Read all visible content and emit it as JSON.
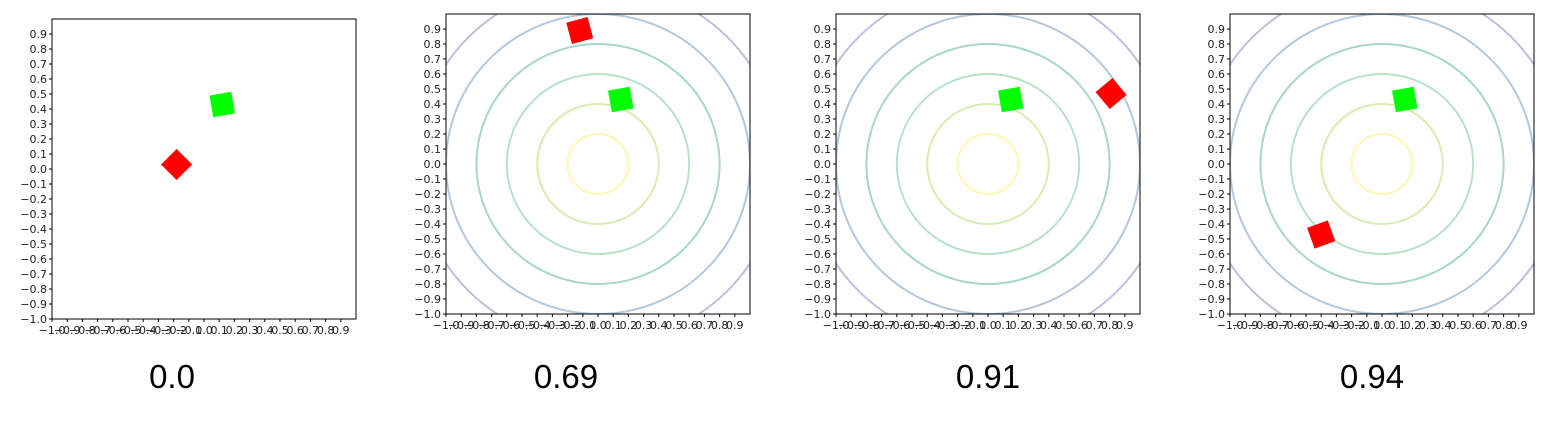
{
  "colors": {
    "target": "#00ff00",
    "agent": "#ff0000",
    "contour_levels": [
      "#fff6b0",
      "#d9edb0",
      "#b8e2c8",
      "#a6d6cc",
      "#b3c7dd",
      "#c1bedb"
    ]
  },
  "panels": [
    {
      "caption": "0.0"
    },
    {
      "caption": "0.69"
    },
    {
      "caption": "0.91"
    },
    {
      "caption": "0.94"
    }
  ],
  "chart_data": [
    {
      "type": "scatter",
      "title": "",
      "xlabel": "",
      "ylabel": "",
      "xlim": [
        -1.0,
        1.0
      ],
      "ylim": [
        -1.0,
        1.0
      ],
      "xticks": [
        "−1.0",
        "−0.9",
        "−0.8",
        "−0.7",
        "−0.6",
        "−0.5",
        "−0.4",
        "−0.3",
        "−0.2",
        "−0.1",
        "0.0",
        "0.1",
        "0.2",
        "0.3",
        "0.4",
        "0.5",
        "0.6",
        "0.7",
        "0.8",
        "0.9"
      ],
      "yticks": [
        "−1.0",
        "−0.9",
        "−0.8",
        "−0.7",
        "−0.6",
        "−0.5",
        "−0.4",
        "−0.3",
        "−0.2",
        "−0.1",
        "0.0",
        "0.1",
        "0.2",
        "0.3",
        "0.4",
        "0.5",
        "0.6",
        "0.7",
        "0.8",
        "0.9"
      ],
      "contours": false,
      "markers": [
        {
          "role": "target",
          "x": 0.12,
          "y": 0.43,
          "rotation_deg": 10,
          "color": "#00ff00"
        },
        {
          "role": "agent",
          "x": -0.18,
          "y": 0.03,
          "rotation_deg": 45,
          "color": "#ff0000"
        }
      ]
    },
    {
      "type": "scatter",
      "title": "",
      "xlabel": "",
      "ylabel": "",
      "xlim": [
        -1.0,
        1.0
      ],
      "ylim": [
        -1.0,
        1.0
      ],
      "xticks": [
        "−1.0",
        "−0.9",
        "−0.8",
        "−0.7",
        "−0.6",
        "−0.5",
        "−0.4",
        "−0.3",
        "−0.2",
        "−0.1",
        "0.0",
        "0.1",
        "0.2",
        "0.3",
        "0.4",
        "0.5",
        "0.6",
        "0.7",
        "0.8",
        "0.9"
      ],
      "yticks": [
        "−1.0",
        "−0.9",
        "−0.8",
        "−0.7",
        "−0.6",
        "−0.5",
        "−0.4",
        "−0.3",
        "−0.2",
        "−0.1",
        "0.0",
        "0.1",
        "0.2",
        "0.3",
        "0.4",
        "0.5",
        "0.6",
        "0.7",
        "0.8",
        "0.9"
      ],
      "contours": true,
      "markers": [
        {
          "role": "target",
          "x": 0.15,
          "y": 0.43,
          "rotation_deg": 10,
          "color": "#00ff00"
        },
        {
          "role": "agent",
          "x": -0.12,
          "y": 0.89,
          "rotation_deg": 15,
          "color": "#ff0000"
        }
      ]
    },
    {
      "type": "scatter",
      "title": "",
      "xlabel": "",
      "ylabel": "",
      "xlim": [
        -1.0,
        1.0
      ],
      "ylim": [
        -1.0,
        1.0
      ],
      "xticks": [
        "−1.0",
        "−0.9",
        "−0.8",
        "−0.7",
        "−0.6",
        "−0.5",
        "−0.4",
        "−0.3",
        "−0.2",
        "−0.1",
        "0.0",
        "0.1",
        "0.2",
        "0.3",
        "0.4",
        "0.5",
        "0.6",
        "0.7",
        "0.8",
        "0.9"
      ],
      "yticks": [
        "−1.0",
        "−0.9",
        "−0.8",
        "−0.7",
        "−0.6",
        "−0.5",
        "−0.4",
        "−0.3",
        "−0.2",
        "−0.1",
        "0.0",
        "0.1",
        "0.2",
        "0.3",
        "0.4",
        "0.5",
        "0.6",
        "0.7",
        "0.8",
        "0.9"
      ],
      "contours": true,
      "markers": [
        {
          "role": "target",
          "x": 0.15,
          "y": 0.43,
          "rotation_deg": 10,
          "color": "#00ff00"
        },
        {
          "role": "agent",
          "x": 0.81,
          "y": 0.47,
          "rotation_deg": 40,
          "color": "#ff0000"
        }
      ]
    },
    {
      "type": "scatter",
      "title": "",
      "xlabel": "",
      "ylabel": "",
      "xlim": [
        -1.0,
        1.0
      ],
      "ylim": [
        -1.0,
        1.0
      ],
      "xticks": [
        "−1.0",
        "−0.9",
        "−0.8",
        "−0.7",
        "−0.6",
        "−0.5",
        "−0.4",
        "−0.3",
        "−0.2",
        "−0.1",
        "0.0",
        "0.1",
        "0.2",
        "0.3",
        "0.4",
        "0.5",
        "0.6",
        "0.7",
        "0.8",
        "0.9"
      ],
      "yticks": [
        "−1.0",
        "−0.9",
        "−0.8",
        "−0.7",
        "−0.6",
        "−0.5",
        "−0.4",
        "−0.3",
        "−0.2",
        "−0.1",
        "0.0",
        "0.1",
        "0.2",
        "0.3",
        "0.4",
        "0.5",
        "0.6",
        "0.7",
        "0.8",
        "0.9"
      ],
      "contours": true,
      "markers": [
        {
          "role": "target",
          "x": 0.15,
          "y": 0.43,
          "rotation_deg": 10,
          "color": "#00ff00"
        },
        {
          "role": "agent",
          "x": -0.4,
          "y": -0.47,
          "rotation_deg": 20,
          "color": "#ff0000"
        }
      ]
    }
  ]
}
